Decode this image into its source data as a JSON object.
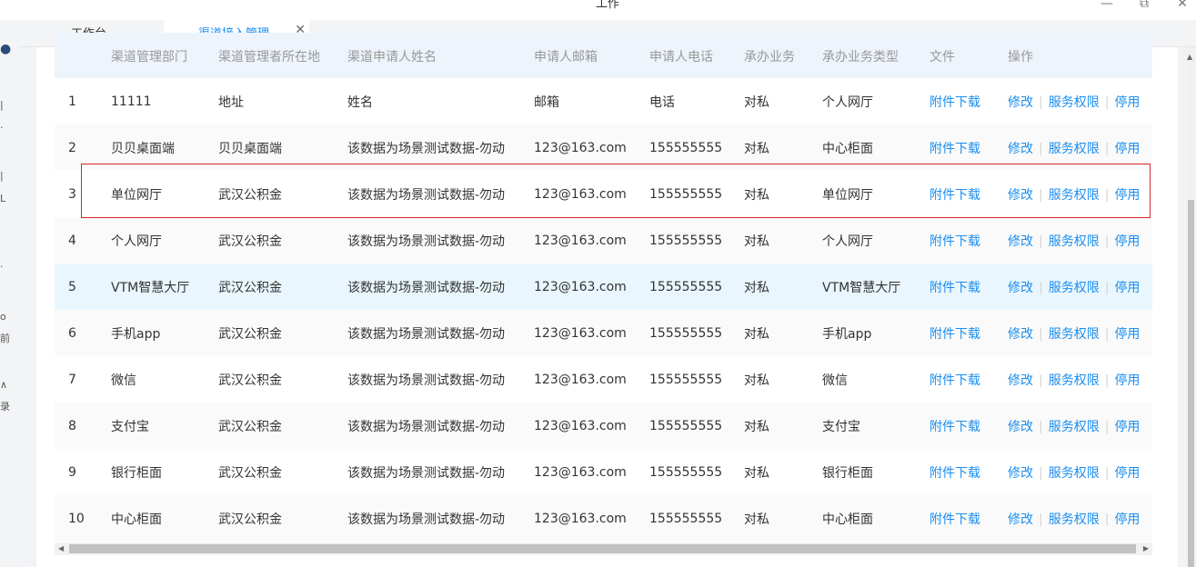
{
  "window": {
    "title": "工作",
    "minimize": "—",
    "restore": "⧉",
    "close": "✕"
  },
  "tabs": [
    {
      "label": "工作台"
    },
    {
      "label": "渠道接入管理",
      "close": "✕"
    }
  ],
  "table": {
    "columns": [
      "渠道管理部门",
      "渠道管理者所在地",
      "渠道申请人姓名",
      "申请人邮箱",
      "申请人电话",
      "承办业务",
      "承办业务类型",
      "文件",
      "操作"
    ],
    "actions": {
      "download": "附件下载",
      "edit": "修改",
      "permission": "服务权限",
      "disable": "停用"
    },
    "rows": [
      {
        "idx": "1",
        "dept": "11111",
        "location": "地址",
        "name": "姓名",
        "email": "邮箱",
        "phone": "电话",
        "business": "对私",
        "type": "个人网厅"
      },
      {
        "idx": "2",
        "dept": "贝贝桌面端",
        "location": "贝贝桌面端",
        "name": "该数据为场景测试数据-勿动",
        "email": "123@163.com",
        "phone": "155555555",
        "business": "对私",
        "type": "中心柜面"
      },
      {
        "idx": "3",
        "dept": "单位网厅",
        "location": "武汉公积金",
        "name": "该数据为场景测试数据-勿动",
        "email": "123@163.com",
        "phone": "155555555",
        "business": "对私",
        "type": "单位网厅"
      },
      {
        "idx": "4",
        "dept": "个人网厅",
        "location": "武汉公积金",
        "name": "该数据为场景测试数据-勿动",
        "email": "123@163.com",
        "phone": "155555555",
        "business": "对私",
        "type": "个人网厅"
      },
      {
        "idx": "5",
        "dept": "VTM智慧大厅",
        "location": "武汉公积金",
        "name": "该数据为场景测试数据-勿动",
        "email": "123@163.com",
        "phone": "155555555",
        "business": "对私",
        "type": "VTM智慧大厅"
      },
      {
        "idx": "6",
        "dept": "手机app",
        "location": "武汉公积金",
        "name": "该数据为场景测试数据-勿动",
        "email": "123@163.com",
        "phone": "155555555",
        "business": "对私",
        "type": "手机app"
      },
      {
        "idx": "7",
        "dept": "微信",
        "location": "武汉公积金",
        "name": "该数据为场景测试数据-勿动",
        "email": "123@163.com",
        "phone": "155555555",
        "business": "对私",
        "type": "微信"
      },
      {
        "idx": "8",
        "dept": "支付宝",
        "location": "武汉公积金",
        "name": "该数据为场景测试数据-勿动",
        "email": "123@163.com",
        "phone": "155555555",
        "business": "对私",
        "type": "支付宝"
      },
      {
        "idx": "9",
        "dept": "银行柜面",
        "location": "武汉公积金",
        "name": "该数据为场景测试数据-勿动",
        "email": "123@163.com",
        "phone": "155555555",
        "business": "对私",
        "type": "银行柜面"
      },
      {
        "idx": "10",
        "dept": "中心柜面",
        "location": "武汉公积金",
        "name": "该数据为场景测试数据-勿动",
        "email": "123@163.com",
        "phone": "155555555",
        "business": "对私",
        "type": "中心柜面"
      }
    ]
  },
  "leftnav_fragments": [
    "|",
    "·",
    "|",
    "L",
    "·",
    "o",
    "前",
    "∧",
    "录"
  ],
  "colors": {
    "link": "#1a8ef0",
    "header_bg": "#eef4fc",
    "highlight_row": "#e9f6fd",
    "annotation_box": "#d6262a"
  }
}
